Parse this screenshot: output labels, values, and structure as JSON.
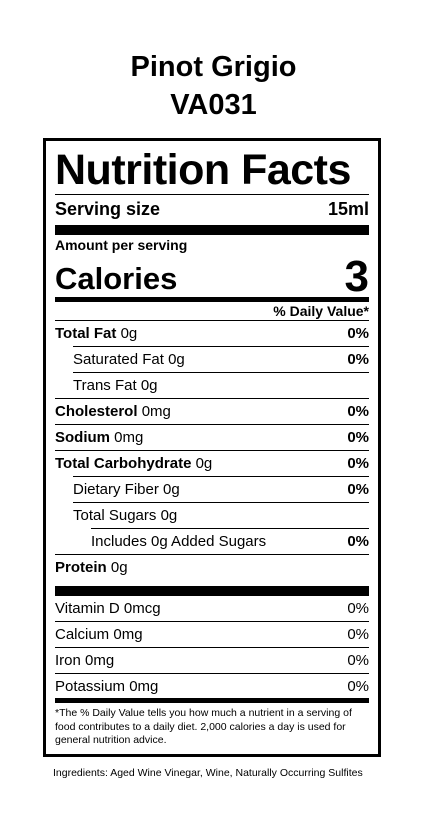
{
  "product": {
    "name": "Pinot Grigio",
    "code": "VA031"
  },
  "label": {
    "heading": "Nutrition Facts",
    "serving_label": "Serving size",
    "serving_value": "15ml",
    "amount_per_serving": "Amount per serving",
    "calories_label": "Calories",
    "calories_value": "3",
    "daily_value_header": "% Daily Value*"
  },
  "nutrients": [
    {
      "name": "Total Fat",
      "amount": "0g",
      "dv": "0%"
    },
    {
      "name": "Saturated Fat",
      "amount": "0g",
      "dv": "0%"
    },
    {
      "name": "Trans Fat",
      "amount": "0g",
      "dv": ""
    },
    {
      "name": "Cholesterol",
      "amount": "0mg",
      "dv": "0%"
    },
    {
      "name": "Sodium",
      "amount": "0mg",
      "dv": "0%"
    },
    {
      "name": "Total Carbohydrate",
      "amount": "0g",
      "dv": "0%"
    },
    {
      "name": "Dietary Fiber",
      "amount": "0g",
      "dv": "0%"
    },
    {
      "name": "Total Sugars",
      "amount": "0g",
      "dv": ""
    },
    {
      "name": "Includes 0g Added Sugars",
      "amount": "",
      "dv": "0%"
    },
    {
      "name": "Protein",
      "amount": "0g",
      "dv": ""
    }
  ],
  "vitamins": [
    {
      "name": "Vitamin D",
      "amount": "0mcg",
      "dv": "0%"
    },
    {
      "name": "Calcium",
      "amount": "0mg",
      "dv": "0%"
    },
    {
      "name": "Iron",
      "amount": "0mg",
      "dv": "0%"
    },
    {
      "name": "Potassium",
      "amount": "0mg",
      "dv": "0%"
    }
  ],
  "footnote": "*The % Daily Value tells you how much a nutrient in a serving of food contributes to a daily diet. 2,000 calories a day is used for general nutrition advice.",
  "ingredients": "Ingredients: Aged Wine Vinegar, Wine, Naturally Occurring Sulfites"
}
